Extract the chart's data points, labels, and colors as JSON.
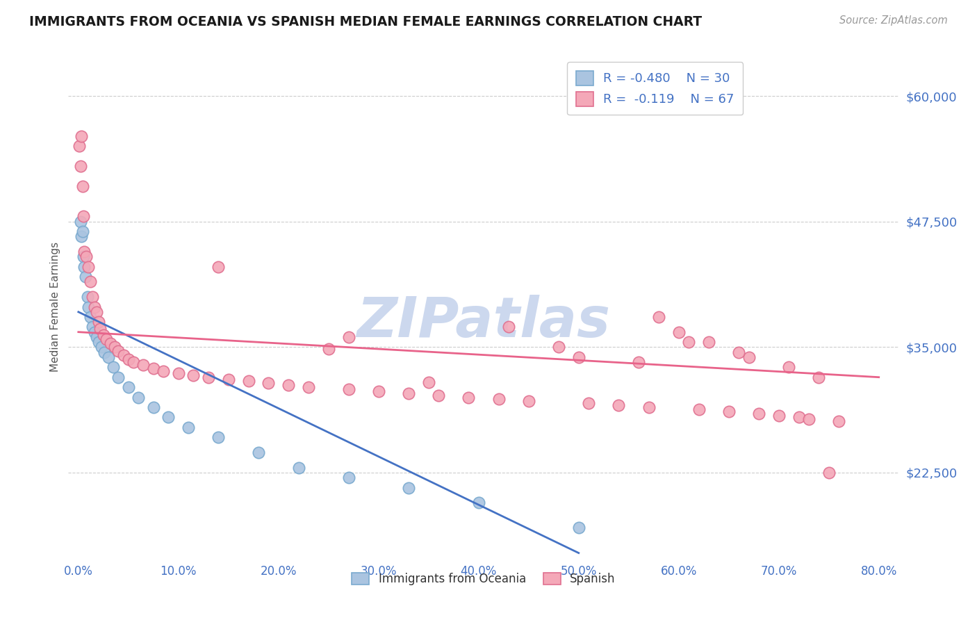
{
  "title": "IMMIGRANTS FROM OCEANIA VS SPANISH MEDIAN FEMALE EARNINGS CORRELATION CHART",
  "source": "Source: ZipAtlas.com",
  "ylabel": "Median Female Earnings",
  "title_color": "#1a1a1a",
  "background_color": "#ffffff",
  "ylim": [
    14000,
    64000
  ],
  "xlim": [
    -1.0,
    82.0
  ],
  "yticks": [
    22500,
    35000,
    47500,
    60000
  ],
  "ytick_labels": [
    "$22,500",
    "$35,000",
    "$47,500",
    "$60,000"
  ],
  "xticks": [
    0,
    10,
    20,
    30,
    40,
    50,
    60,
    70,
    80
  ],
  "xtick_labels": [
    "0.0%",
    "10.0%",
    "20.0%",
    "30.0%",
    "40.0%",
    "50.0%",
    "60.0%",
    "70.0%",
    "80.0%"
  ],
  "grid_color": "#cccccc",
  "series1_color": "#aac4e0",
  "series1_edge": "#7aaacf",
  "series1_line_color": "#4472c4",
  "series1_label": "Immigrants from Oceania",
  "series1_R": "-0.480",
  "series1_N": "30",
  "series2_color": "#f4a8b8",
  "series2_edge": "#e07090",
  "series2_line_color": "#e8638a",
  "series2_label": "Spanish",
  "series2_R": "-0.119",
  "series2_N": "67",
  "watermark": "ZIPatlas",
  "watermark_color": "#ccd8ee",
  "series1_x": [
    0.2,
    0.3,
    0.4,
    0.5,
    0.6,
    0.7,
    0.9,
    1.0,
    1.2,
    1.4,
    1.6,
    1.8,
    2.0,
    2.3,
    2.6,
    3.0,
    3.5,
    4.0,
    5.0,
    6.0,
    7.5,
    9.0,
    11.0,
    14.0,
    18.0,
    22.0,
    27.0,
    33.0,
    40.0,
    50.0
  ],
  "series1_y": [
    47500,
    46000,
    46500,
    44000,
    43000,
    42000,
    40000,
    39000,
    38000,
    37000,
    36500,
    36000,
    35500,
    35000,
    34500,
    34000,
    33000,
    32000,
    31000,
    30000,
    29000,
    28000,
    27000,
    26000,
    24500,
    23000,
    22000,
    21000,
    19500,
    17000
  ],
  "series2_x": [
    0.1,
    0.2,
    0.3,
    0.4,
    0.5,
    0.6,
    0.8,
    1.0,
    1.2,
    1.4,
    1.6,
    1.8,
    2.0,
    2.2,
    2.5,
    2.8,
    3.2,
    3.6,
    4.0,
    4.5,
    5.0,
    5.5,
    6.5,
    7.5,
    8.5,
    10.0,
    11.5,
    13.0,
    15.0,
    17.0,
    19.0,
    21.0,
    23.0,
    25.0,
    27.0,
    30.0,
    33.0,
    36.0,
    39.0,
    42.0,
    45.0,
    48.0,
    51.0,
    54.0,
    57.0,
    60.0,
    62.0,
    65.0,
    68.0,
    70.0,
    72.0,
    73.0,
    75.0,
    76.0,
    58.0,
    63.0,
    67.0,
    71.0,
    74.0,
    14.0,
    27.0,
    35.0,
    43.0,
    50.0,
    56.0,
    61.0,
    66.0
  ],
  "series2_y": [
    55000,
    53000,
    56000,
    51000,
    48000,
    44500,
    44000,
    43000,
    41500,
    40000,
    39000,
    38500,
    37500,
    36800,
    36200,
    35800,
    35400,
    35000,
    34600,
    34200,
    33800,
    33500,
    33200,
    32900,
    32600,
    32400,
    32200,
    32000,
    31800,
    31600,
    31400,
    31200,
    31000,
    34800,
    30800,
    30600,
    30400,
    30200,
    30000,
    29800,
    29600,
    35000,
    29400,
    29200,
    29000,
    36500,
    28800,
    28600,
    28400,
    28200,
    28000,
    27800,
    22500,
    27600,
    38000,
    35500,
    34000,
    33000,
    32000,
    43000,
    36000,
    31500,
    37000,
    34000,
    33500,
    35500,
    34500
  ],
  "trendline1_x0": 0.0,
  "trendline1_y0": 38500,
  "trendline1_x1": 50.0,
  "trendline1_y1": 14500,
  "trendline2_x0": 0.0,
  "trendline2_y0": 36500,
  "trendline2_x1": 80.0,
  "trendline2_y1": 32000
}
